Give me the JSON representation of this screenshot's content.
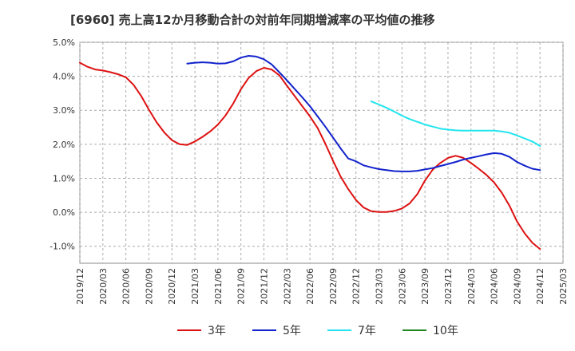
{
  "chart_data": {
    "type": "line",
    "title": "[6960]  売上高12か月移動合計の対前年同期増減率の平均値の推移",
    "xlabel": "",
    "ylabel": "",
    "ylim": [
      -1.5,
      5.0
    ],
    "y_ticks": [
      "5.0%",
      "4.0%",
      "3.0%",
      "2.0%",
      "1.0%",
      "0.0%",
      "-1.0%"
    ],
    "y_tick_values": [
      5.0,
      4.0,
      3.0,
      2.0,
      1.0,
      0.0,
      -1.0
    ],
    "x_range": [
      "2019/12",
      "2025/03"
    ],
    "x_ticks": [
      "2019/12",
      "2020/03",
      "2020/06",
      "2020/09",
      "2020/12",
      "2021/03",
      "2021/06",
      "2021/09",
      "2021/12",
      "2022/03",
      "2022/06",
      "2022/09",
      "2022/12",
      "2023/03",
      "2023/06",
      "2023/09",
      "2023/12",
      "2024/03",
      "2024/06",
      "2024/09",
      "2024/12",
      "2025/03"
    ],
    "grid": true,
    "legend_position": "bottom",
    "colors": {
      "3年": "#dd1111",
      "5年": "#1122cc",
      "7年": "#22e5ee",
      "10年": "#228822"
    },
    "series": [
      {
        "name": "3年",
        "color": "#dd1111",
        "x": [
          "2019/12",
          "2020/01",
          "2020/02",
          "2020/03",
          "2020/04",
          "2020/05",
          "2020/06",
          "2020/07",
          "2020/08",
          "2020/09",
          "2020/10",
          "2020/11",
          "2020/12",
          "2021/01",
          "2021/02",
          "2021/03",
          "2021/04",
          "2021/05",
          "2021/06",
          "2021/07",
          "2021/08",
          "2021/09",
          "2021/10",
          "2021/11",
          "2021/12",
          "2022/01",
          "2022/02",
          "2022/03",
          "2022/04",
          "2022/05",
          "2022/06",
          "2022/07",
          "2022/08",
          "2022/09",
          "2022/10",
          "2022/11",
          "2022/12",
          "2023/01",
          "2023/02",
          "2023/03",
          "2023/04",
          "2023/05",
          "2023/06",
          "2023/07",
          "2023/08",
          "2023/09",
          "2023/10",
          "2023/11",
          "2023/12",
          "2024/01",
          "2024/02",
          "2024/03",
          "2024/04",
          "2024/05",
          "2024/06",
          "2024/07",
          "2024/08",
          "2024/09",
          "2024/10",
          "2024/11",
          "2024/12"
        ],
        "values": [
          4.4,
          4.28,
          4.2,
          4.17,
          4.12,
          4.06,
          3.97,
          3.75,
          3.42,
          3.02,
          2.65,
          2.35,
          2.12,
          2.0,
          1.98,
          2.08,
          2.22,
          2.38,
          2.58,
          2.85,
          3.2,
          3.62,
          3.95,
          4.15,
          4.25,
          4.2,
          4.03,
          3.72,
          3.42,
          3.12,
          2.82,
          2.48,
          2.02,
          1.52,
          1.05,
          0.68,
          0.36,
          0.14,
          0.03,
          0.01,
          0.01,
          0.04,
          0.11,
          0.26,
          0.53,
          0.93,
          1.25,
          1.45,
          1.6,
          1.66,
          1.6,
          1.45,
          1.28,
          1.1,
          0.88,
          0.58,
          0.2,
          -0.27,
          -0.62,
          -0.9,
          -1.08
        ]
      },
      {
        "name": "5年",
        "color": "#1122cc",
        "x": [
          "2021/02",
          "2021/03",
          "2021/04",
          "2021/05",
          "2021/06",
          "2021/07",
          "2021/08",
          "2021/09",
          "2021/10",
          "2021/11",
          "2021/12",
          "2022/01",
          "2022/02",
          "2022/03",
          "2022/04",
          "2022/05",
          "2022/06",
          "2022/07",
          "2022/08",
          "2022/09",
          "2022/10",
          "2022/11",
          "2022/12",
          "2023/01",
          "2023/02",
          "2023/03",
          "2023/04",
          "2023/05",
          "2023/06",
          "2023/07",
          "2023/08",
          "2023/09",
          "2023/10",
          "2023/11",
          "2023/12",
          "2024/01",
          "2024/02",
          "2024/03",
          "2024/04",
          "2024/05",
          "2024/06",
          "2024/07",
          "2024/08",
          "2024/09",
          "2024/10",
          "2024/11",
          "2024/12"
        ],
        "values": [
          4.37,
          4.4,
          4.41,
          4.4,
          4.37,
          4.38,
          4.44,
          4.55,
          4.6,
          4.58,
          4.5,
          4.35,
          4.12,
          3.88,
          3.63,
          3.38,
          3.12,
          2.82,
          2.52,
          2.2,
          1.88,
          1.58,
          1.5,
          1.38,
          1.32,
          1.27,
          1.24,
          1.21,
          1.2,
          1.2,
          1.22,
          1.26,
          1.3,
          1.36,
          1.42,
          1.48,
          1.55,
          1.6,
          1.65,
          1.7,
          1.74,
          1.72,
          1.63,
          1.48,
          1.37,
          1.28,
          1.24
        ]
      },
      {
        "name": "7年",
        "color": "#22e5ee",
        "x": [
          "2023/02",
          "2023/03",
          "2023/04",
          "2023/05",
          "2023/06",
          "2023/07",
          "2023/08",
          "2023/09",
          "2023/10",
          "2023/11",
          "2023/12",
          "2024/01",
          "2024/02",
          "2024/03",
          "2024/04",
          "2024/05",
          "2024/06",
          "2024/07",
          "2024/08",
          "2024/09",
          "2024/10",
          "2024/11",
          "2024/12"
        ],
        "values": [
          3.26,
          3.17,
          3.07,
          2.96,
          2.84,
          2.74,
          2.66,
          2.58,
          2.52,
          2.46,
          2.43,
          2.41,
          2.4,
          2.4,
          2.4,
          2.4,
          2.4,
          2.38,
          2.34,
          2.26,
          2.17,
          2.08,
          1.95
        ]
      },
      {
        "name": "10年",
        "color": "#228822",
        "x": [],
        "values": []
      }
    ]
  }
}
